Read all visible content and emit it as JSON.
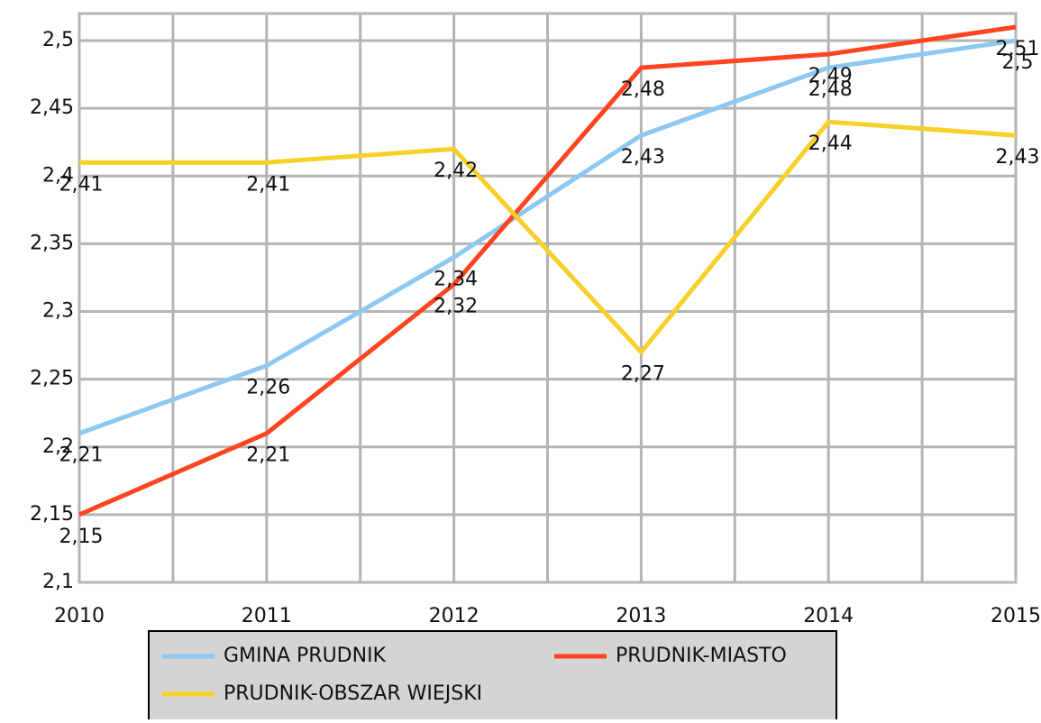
{
  "chart_data": {
    "type": "line",
    "x": [
      2010,
      2011,
      2012,
      2013,
      2014,
      2015
    ],
    "xlim": [
      2010,
      2015
    ],
    "xticks": [
      2010,
      2011,
      2012,
      2013,
      2014,
      2015
    ],
    "ylim": [
      2.1,
      2.52
    ],
    "yticks": [
      {
        "value": 2.1,
        "label": "2,1"
      },
      {
        "value": 2.15,
        "label": "2,15"
      },
      {
        "value": 2.2,
        "label": "2,2"
      },
      {
        "value": 2.25,
        "label": "2,25"
      },
      {
        "value": 2.3,
        "label": "2,3"
      },
      {
        "value": 2.35,
        "label": "2,35"
      },
      {
        "value": 2.4,
        "label": "2,4"
      },
      {
        "value": 2.45,
        "label": "2,45"
      },
      {
        "value": 2.5,
        "label": "2,5"
      }
    ],
    "grid": true,
    "series": [
      {
        "name": "GMINA PRUDNIK",
        "color": "#8cc8f2",
        "values": [
          2.21,
          2.26,
          2.34,
          2.43,
          2.48,
          2.5
        ],
        "value_labels": [
          "2,21",
          "2,26",
          "2,34",
          "2,43",
          "2,48",
          "2,5"
        ]
      },
      {
        "name": "PRUDNIK-MIASTO",
        "color": "#ff4420",
        "values": [
          2.15,
          2.21,
          2.32,
          2.48,
          2.49,
          2.51
        ],
        "value_labels": [
          "2,15",
          "2,21",
          "2,32",
          "2,48",
          "2,49",
          "2,51"
        ]
      },
      {
        "name": "PRUDNIK-OBSZAR WIEJSKI",
        "color": "#f8d02a",
        "values": [
          2.41,
          2.41,
          2.42,
          2.27,
          2.44,
          2.43
        ],
        "value_labels": [
          "2,41",
          "2,41",
          "2,42",
          "2,27",
          "2,44",
          "2,43"
        ]
      }
    ],
    "legend": "bottom"
  }
}
